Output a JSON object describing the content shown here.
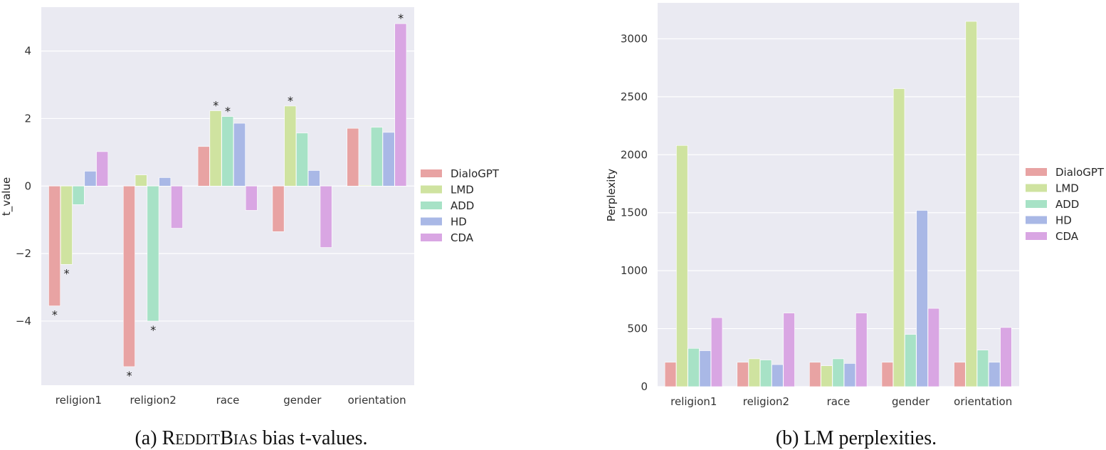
{
  "colors": {
    "background": "#eaeaf2",
    "grid": "#ffffff",
    "DialoGPT": "#e8a3a3",
    "LMD": "#cfe3a0",
    "ADD": "#a7e2c6",
    "HD": "#a9b8e6",
    "CDA": "#d9a6e3"
  },
  "chart_data": [
    {
      "type": "bar",
      "categories": [
        "religion1",
        "religion2",
        "race",
        "gender",
        "orientation"
      ],
      "series": [
        {
          "name": "DialoGPT",
          "values": [
            -3.55,
            -5.35,
            1.17,
            -1.35,
            1.71
          ]
        },
        {
          "name": "LMD",
          "values": [
            -2.32,
            0.33,
            2.23,
            2.37,
            0.02
          ]
        },
        {
          "name": "ADD",
          "values": [
            -0.55,
            -4.0,
            2.06,
            1.57,
            1.74
          ]
        },
        {
          "name": "HD",
          "values": [
            0.44,
            0.25,
            1.86,
            0.46,
            1.59
          ]
        },
        {
          "name": "CDA",
          "values": [
            1.02,
            -1.25,
            -0.72,
            -1.82,
            4.81
          ]
        }
      ],
      "significant": [
        {
          "series": "DialoGPT",
          "category": "religion1"
        },
        {
          "series": "LMD",
          "category": "religion1"
        },
        {
          "series": "DialoGPT",
          "category": "religion2"
        },
        {
          "series": "ADD",
          "category": "religion2"
        },
        {
          "series": "LMD",
          "category": "race"
        },
        {
          "series": "ADD",
          "category": "race"
        },
        {
          "series": "LMD",
          "category": "gender"
        },
        {
          "series": "CDA",
          "category": "orientation"
        }
      ],
      "significance_marker": "*",
      "ylabel": "t_value",
      "xlabel": "",
      "ylim": [
        -5.9,
        5.3
      ],
      "yticks": [
        -4,
        -2,
        0,
        2,
        4
      ],
      "ytick_labels": [
        "−4",
        "−2",
        "0",
        "2",
        "4"
      ],
      "grid": true,
      "legend_position": "right",
      "caption": {
        "prefix": "(a) ",
        "r": "R",
        "eddit": "EDDIT",
        "b": "B",
        "ias": "IAS",
        "suffix": " bias t-values."
      }
    },
    {
      "type": "bar",
      "categories": [
        "religion1",
        "religion2",
        "race",
        "gender",
        "orientation"
      ],
      "series": [
        {
          "name": "DialoGPT",
          "values": [
            210,
            210,
            210,
            210,
            210
          ]
        },
        {
          "name": "LMD",
          "values": [
            2080,
            240,
            180,
            2570,
            3150
          ]
        },
        {
          "name": "ADD",
          "values": [
            330,
            230,
            240,
            450,
            315
          ]
        },
        {
          "name": "HD",
          "values": [
            310,
            190,
            200,
            1520,
            210
          ]
        },
        {
          "name": "CDA",
          "values": [
            595,
            635,
            635,
            675,
            510
          ]
        }
      ],
      "ylabel": "Perplexity",
      "xlabel": "",
      "ylim": [
        0,
        3310
      ],
      "yticks": [
        0,
        500,
        1000,
        1500,
        2000,
        2500,
        3000
      ],
      "ytick_labels": [
        "0",
        "500",
        "1000",
        "1500",
        "2000",
        "2500",
        "3000"
      ],
      "grid": true,
      "legend_position": "right",
      "caption": "(b) LM perplexities."
    }
  ]
}
